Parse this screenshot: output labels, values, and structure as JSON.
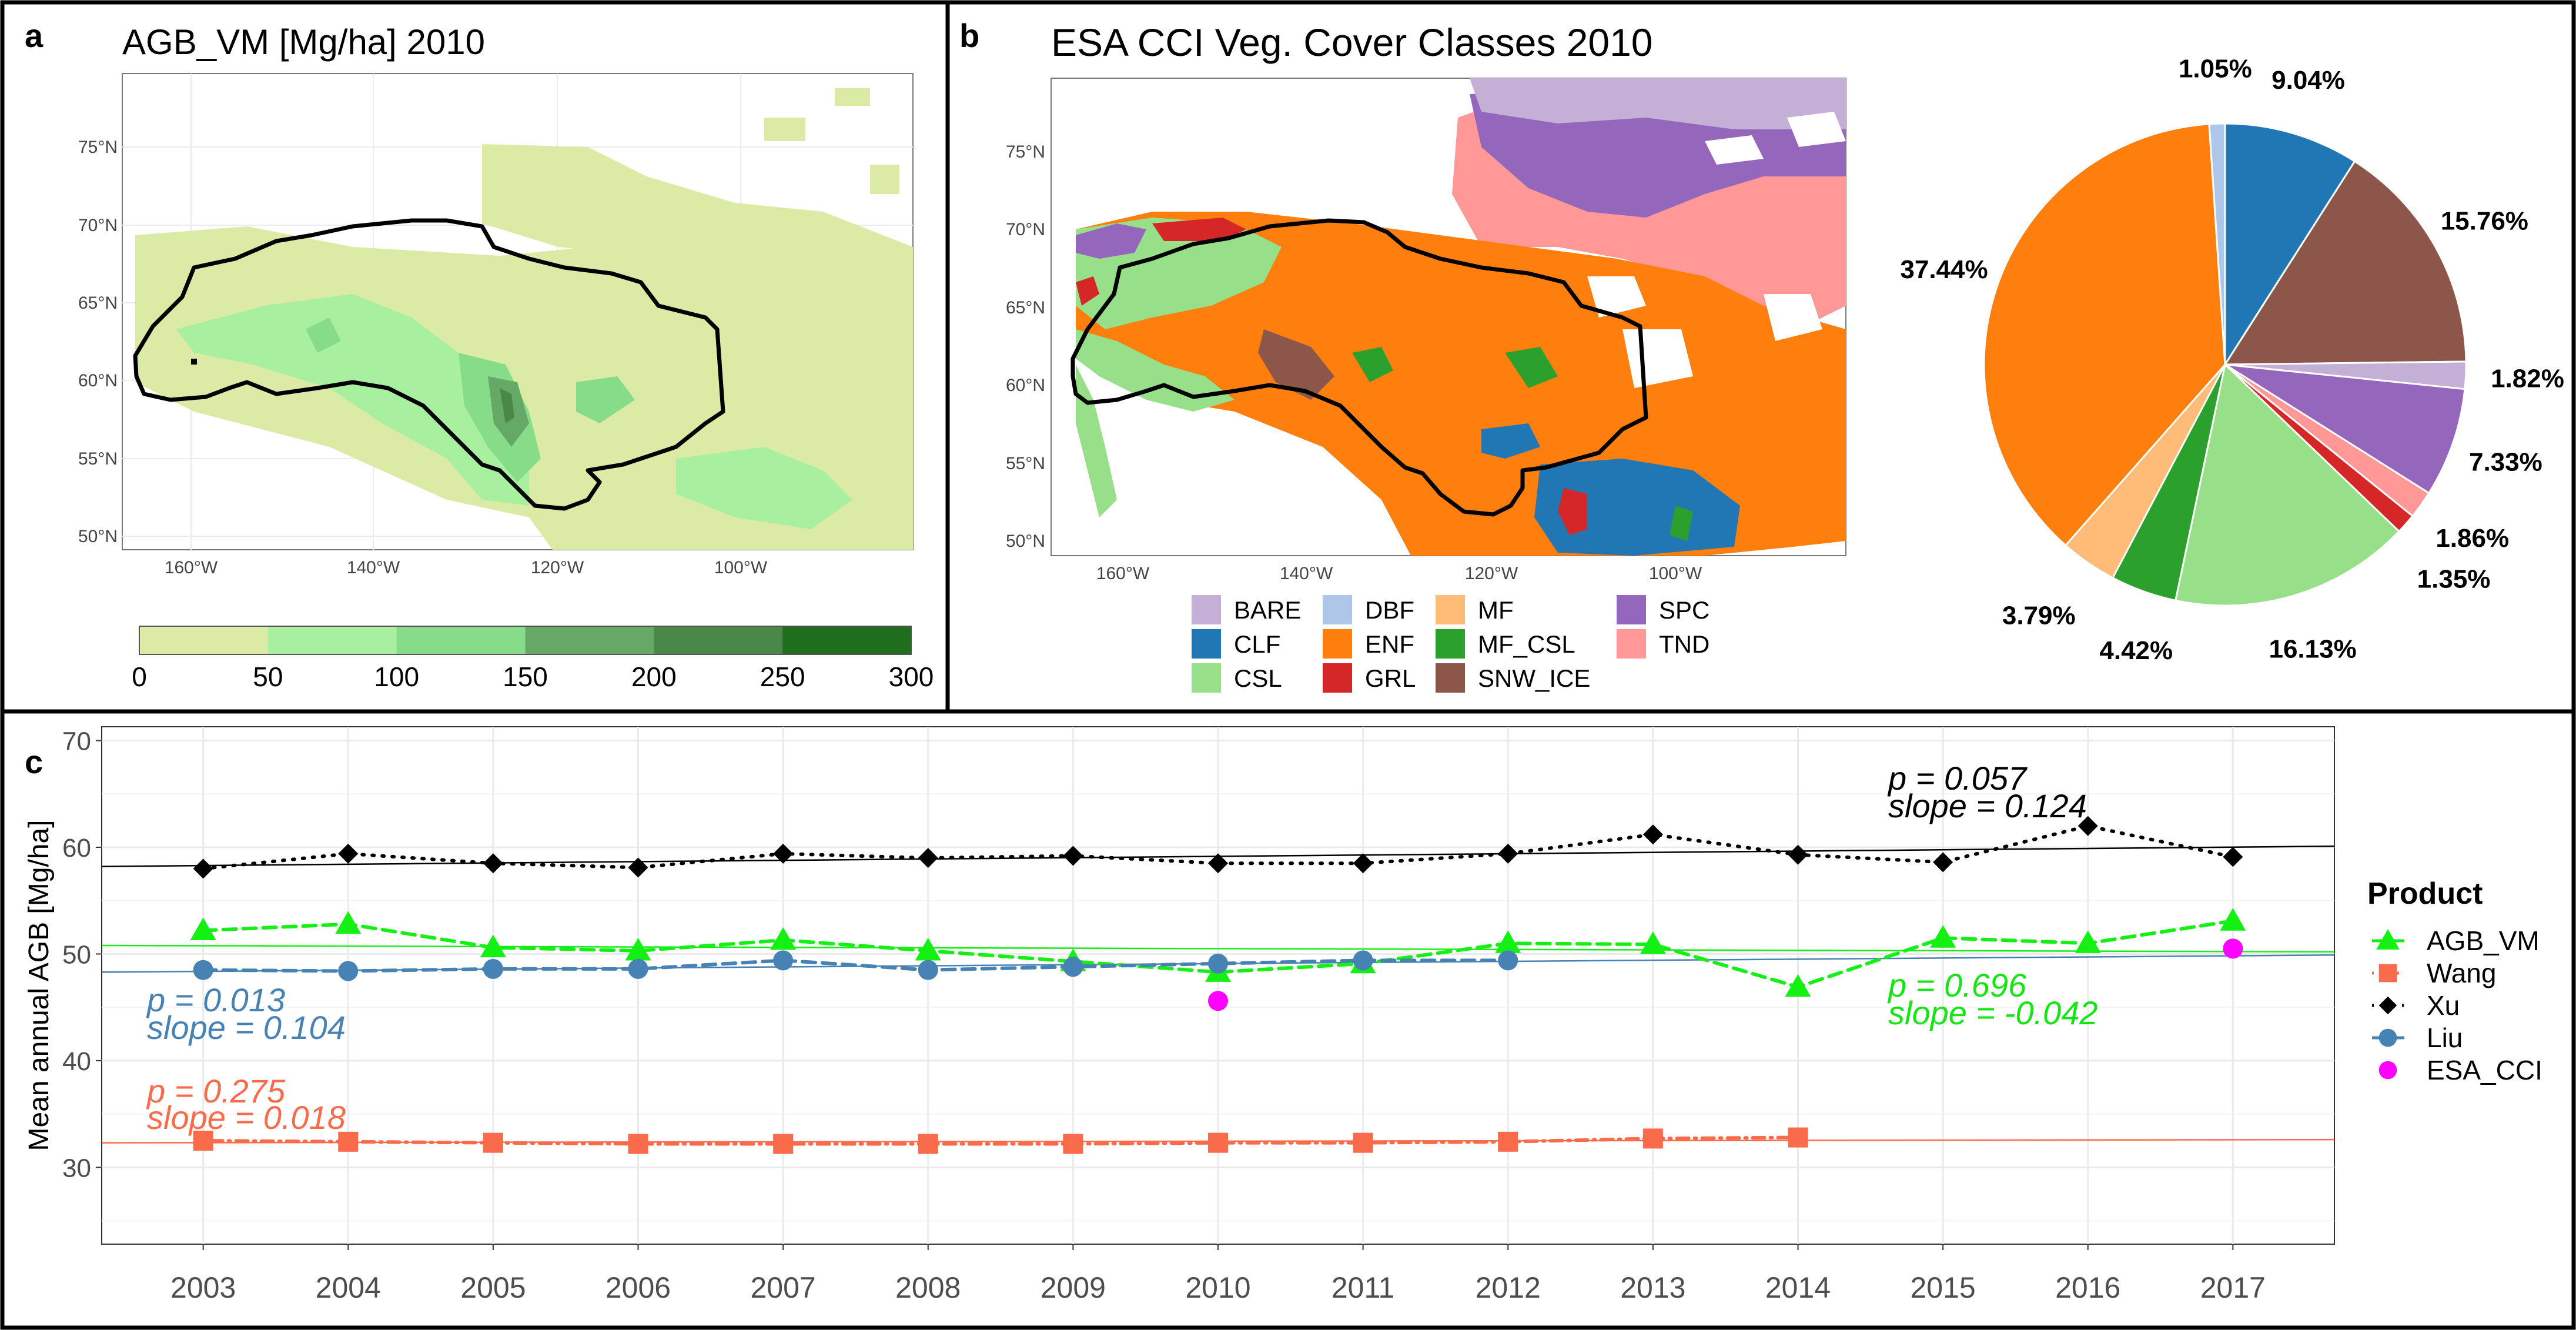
{
  "panel_a": {
    "letter": "a",
    "title": "AGB_VM [Mg/ha] 2010",
    "y_ticks": [
      "75°N",
      "70°N",
      "65°N",
      "60°N",
      "55°N",
      "50°N"
    ],
    "x_ticks": [
      "160°W",
      "140°W",
      "120°W",
      "100°W"
    ],
    "colorbar": {
      "labels": [
        "0",
        "50",
        "100",
        "150",
        "200",
        "250",
        "300"
      ],
      "colors": [
        "#dbeaa4",
        "#a8f0a0",
        "#86dc88",
        "#66a866",
        "#4a884a",
        "#1e6e1e"
      ]
    }
  },
  "panel_b": {
    "letter": "b",
    "title": "ESA CCI Veg. Cover Classes 2010",
    "y_ticks": [
      "75°N",
      "70°N",
      "65°N",
      "60°N",
      "55°N",
      "50°N"
    ],
    "x_ticks": [
      "160°W",
      "140°W",
      "120°W",
      "100°W"
    ],
    "legend": [
      {
        "label": "BARE",
        "color": "#c4b0d6"
      },
      {
        "label": "CLF",
        "color": "#2176b4"
      },
      {
        "label": "CSL",
        "color": "#98df8a"
      },
      {
        "label": "DBF",
        "color": "#aec7e8"
      },
      {
        "label": "ENF",
        "color": "#ff7f0e"
      },
      {
        "label": "GRL",
        "color": "#d62728"
      },
      {
        "label": "MF",
        "color": "#ffbb78"
      },
      {
        "label": "MF_CSL",
        "color": "#2ca02c"
      },
      {
        "label": "SNW_ICE",
        "color": "#8c564b"
      },
      {
        "label": "SPC",
        "color": "#9467bd"
      },
      {
        "label": "TND",
        "color": "#ff9896"
      }
    ]
  },
  "panel_c": {
    "letter": "c",
    "legend_title": "Product",
    "annotations": [
      {
        "p": "p = 0.057",
        "slope": "slope = 0.124",
        "color": "#000000"
      },
      {
        "p": "p = 0.013",
        "slope": "slope = 0.104",
        "color": "#4682b4"
      },
      {
        "p": "p = 0.275",
        "slope": "slope = 0.018",
        "color": "#fa6b4b"
      },
      {
        "p": "p = 0.696",
        "slope": "slope = -0.042",
        "color": "#14e614"
      }
    ]
  },
  "chart_data": [
    {
      "type": "pie",
      "categories": [
        "CLF",
        "SNW_ICE",
        "BARE",
        "SPC",
        "TND",
        "GRL",
        "CSL",
        "MF_CSL",
        "MF",
        "ENF",
        "DBF"
      ],
      "values": [
        9.04,
        15.76,
        1.82,
        7.33,
        1.86,
        1.35,
        16.13,
        4.42,
        3.79,
        37.44,
        1.05
      ],
      "labels": [
        "9.04%",
        "15.76%",
        "1.82%",
        "7.33%",
        "1.86%",
        "1.35%",
        "16.13%",
        "4.42%",
        "3.79%",
        "37.44%",
        "1.05%"
      ],
      "colors": [
        "#2176b4",
        "#8c564b",
        "#c4b0d6",
        "#9467bd",
        "#ff9896",
        "#d62728",
        "#98df8a",
        "#2ca02c",
        "#ffbb78",
        "#ff7f0e",
        "#aec7e8"
      ]
    },
    {
      "type": "line",
      "ylabel": "Mean annual AGB [Mg/ha]",
      "xlim": [
        2002.3,
        2017.7
      ],
      "ylim": [
        22.8,
        71.3
      ],
      "x_ticks": [
        2003,
        2004,
        2005,
        2006,
        2007,
        2008,
        2009,
        2010,
        2011,
        2012,
        2013,
        2014,
        2015,
        2016,
        2017
      ],
      "y_ticks": [
        30,
        40,
        50,
        60,
        70
      ],
      "grid": true,
      "legend_position": "right",
      "series": [
        {
          "name": "AGB_VM",
          "color": "#14f014",
          "marker": "triangle",
          "line": "dashed",
          "x": [
            2003,
            2004,
            2005,
            2006,
            2007,
            2008,
            2009,
            2010,
            2011,
            2012,
            2013,
            2014,
            2015,
            2016,
            2017
          ],
          "values": [
            52.2,
            52.8,
            50.6,
            50.3,
            51.3,
            50.3,
            49.3,
            48.3,
            49.1,
            51.0,
            50.9,
            46.9,
            51.5,
            51.0,
            53.1
          ],
          "trend": [
            50.8,
            50.2
          ]
        },
        {
          "name": "Wang",
          "color": "#fa6b4b",
          "marker": "square",
          "line": "dotdash",
          "x": [
            2003,
            2004,
            2005,
            2006,
            2007,
            2008,
            2009,
            2010,
            2011,
            2012,
            2013,
            2014
          ],
          "values": [
            32.5,
            32.4,
            32.3,
            32.2,
            32.2,
            32.2,
            32.2,
            32.3,
            32.3,
            32.4,
            32.7,
            32.8
          ],
          "trend": [
            32.3,
            32.6
          ]
        },
        {
          "name": "Xu",
          "color": "#000000",
          "marker": "diamond",
          "line": "dotted",
          "x": [
            2003,
            2004,
            2005,
            2006,
            2007,
            2008,
            2009,
            2010,
            2011,
            2012,
            2013,
            2014,
            2015,
            2016,
            2017
          ],
          "values": [
            58.0,
            59.4,
            58.5,
            58.1,
            59.4,
            59.0,
            59.2,
            58.5,
            58.5,
            59.4,
            61.2,
            59.3,
            58.6,
            62.0,
            59.1
          ],
          "trend": [
            58.2,
            60.1
          ]
        },
        {
          "name": "Liu",
          "color": "#4682b4",
          "marker": "circle",
          "line": "dashed",
          "x": [
            2003,
            2004,
            2005,
            2006,
            2007,
            2008,
            2009,
            2010,
            2011,
            2012
          ],
          "values": [
            48.5,
            48.4,
            48.6,
            48.6,
            49.4,
            48.5,
            48.8,
            49.1,
            49.4,
            49.4
          ],
          "trend": [
            48.3,
            49.9
          ]
        },
        {
          "name": "ESA_CCI",
          "color": "#ff00ff",
          "marker": "circle",
          "line": "none",
          "x": [
            2010,
            2017
          ],
          "values": [
            45.6,
            50.5
          ]
        }
      ]
    }
  ]
}
